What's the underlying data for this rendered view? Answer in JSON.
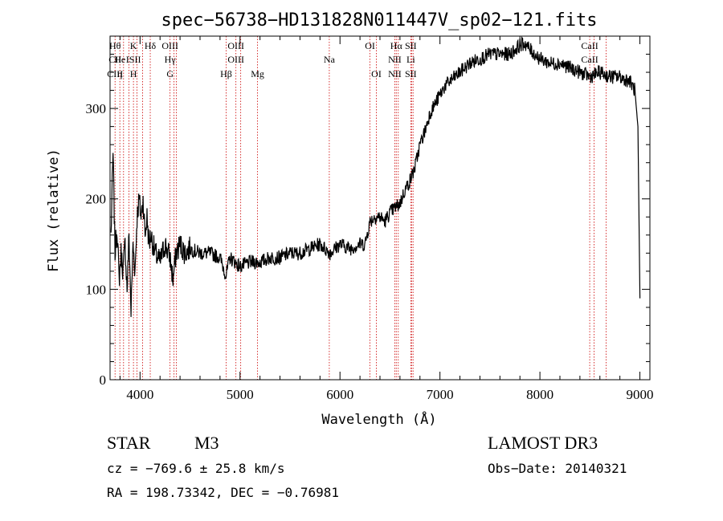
{
  "chart_data": {
    "type": "line",
    "title": "spec−56738−HD131828N011447V_sp02−121.fits",
    "xlabel": "Wavelength (Å)",
    "ylabel": "Flux (relative)",
    "xlim": [
      3700,
      9100
    ],
    "ylim": [
      0,
      380
    ],
    "xticks": [
      4000,
      5000,
      6000,
      7000,
      8000,
      9000
    ],
    "yticks": [
      0,
      100,
      200,
      300
    ],
    "grid": false,
    "line_color": "#000000",
    "marker_color": "#cc0000",
    "series": [
      {
        "x": [
          3710,
          3730,
          3750,
          3770,
          3790,
          3810,
          3830,
          3850,
          3870,
          3890,
          3910,
          3930,
          3950,
          3970,
          3990,
          4010,
          4030,
          4050,
          4070,
          4090,
          4110,
          4150,
          4200,
          4250,
          4300,
          4330,
          4360,
          4400,
          4450,
          4500,
          4600,
          4700,
          4800,
          4860,
          4900,
          4950,
          5000,
          5100,
          5200,
          5300,
          5400,
          5500,
          5600,
          5700,
          5800,
          5900,
          6000,
          6100,
          6200,
          6250,
          6300,
          6350,
          6400,
          6450,
          6500,
          6550,
          6600,
          6650,
          6700,
          6750,
          6800,
          6850,
          6900,
          6950,
          7000,
          7050,
          7100,
          7200,
          7300,
          7400,
          7500,
          7600,
          7700,
          7800,
          7850,
          7900,
          8000,
          8100,
          8200,
          8300,
          8400,
          8500,
          8600,
          8700,
          8800,
          8900,
          8950,
          8980,
          9000
        ],
        "y": [
          160,
          250,
          140,
          170,
          110,
          140,
          120,
          150,
          100,
          160,
          75,
          150,
          120,
          180,
          200,
          180,
          200,
          160,
          180,
          150,
          160,
          140,
          130,
          150,
          135,
          110,
          140,
          150,
          140,
          145,
          140,
          140,
          135,
          115,
          135,
          130,
          125,
          130,
          130,
          135,
          135,
          140,
          140,
          145,
          150,
          140,
          150,
          145,
          150,
          150,
          175,
          180,
          180,
          175,
          185,
          190,
          195,
          210,
          220,
          235,
          260,
          275,
          295,
          305,
          315,
          325,
          330,
          340,
          350,
          355,
          360,
          360,
          360,
          370,
          372,
          365,
          355,
          350,
          350,
          345,
          340,
          335,
          340,
          335,
          335,
          330,
          320,
          280,
          90
        ]
      }
    ],
    "markers": [
      {
        "x": 3750,
        "labels": [
          "Hθ",
          "CII",
          "CIII"
        ]
      },
      {
        "x": 3798,
        "labels": [
          "",
          "He",
          "η"
        ]
      },
      {
        "x": 3835,
        "labels": [
          "",
          "",
          ""
        ]
      },
      {
        "x": 3889,
        "labels": [
          "",
          "",
          ""
        ]
      },
      {
        "x": 3934,
        "labels": [
          "K",
          "ISII",
          "H"
        ]
      },
      {
        "x": 3969,
        "labels": [
          "",
          "",
          ""
        ]
      },
      {
        "x": 4026,
        "labels": [
          "",
          "",
          ""
        ]
      },
      {
        "x": 4102,
        "labels": [
          "Hδ",
          "",
          ""
        ]
      },
      {
        "x": 4300,
        "labels": [
          "OIII",
          "Hγ",
          "G"
        ]
      },
      {
        "x": 4340,
        "labels": [
          "",
          "",
          ""
        ]
      },
      {
        "x": 4363,
        "labels": [
          "",
          "",
          ""
        ]
      },
      {
        "x": 4861,
        "labels": [
          "",
          "",
          "Hβ"
        ]
      },
      {
        "x": 4959,
        "labels": [
          "OIII",
          "OIII",
          ""
        ]
      },
      {
        "x": 5007,
        "labels": [
          "",
          "",
          ""
        ]
      },
      {
        "x": 5175,
        "labels": [
          "",
          "",
          "Mg"
        ]
      },
      {
        "x": 5893,
        "labels": [
          "",
          "Na",
          ""
        ]
      },
      {
        "x": 6300,
        "labels": [
          "OI",
          "",
          ""
        ]
      },
      {
        "x": 6364,
        "labels": [
          "",
          "",
          "OI"
        ]
      },
      {
        "x": 6548,
        "labels": [
          "",
          "NII",
          "NII"
        ]
      },
      {
        "x": 6563,
        "labels": [
          "Hα",
          "",
          ""
        ]
      },
      {
        "x": 6583,
        "labels": [
          "",
          "",
          ""
        ]
      },
      {
        "x": 6708,
        "labels": [
          "SII",
          "Li",
          "SII"
        ]
      },
      {
        "x": 6716,
        "labels": [
          "",
          "",
          ""
        ]
      },
      {
        "x": 6731,
        "labels": [
          "",
          "",
          ""
        ]
      },
      {
        "x": 8498,
        "labels": [
          "CaII",
          "CaII",
          ""
        ]
      },
      {
        "x": 8542,
        "labels": [
          "",
          "",
          ""
        ]
      },
      {
        "x": 8662,
        "labels": [
          "",
          "",
          "CaII"
        ]
      }
    ]
  },
  "info": {
    "star_class": "STAR",
    "subclass": "M3",
    "survey": "LAMOST DR3",
    "cz": "cz = −769.6 ± 25.8 km/s",
    "obs_date": "Obs−Date: 20140321",
    "radec": "RA = 198.73342, DEC =  −0.76981"
  }
}
